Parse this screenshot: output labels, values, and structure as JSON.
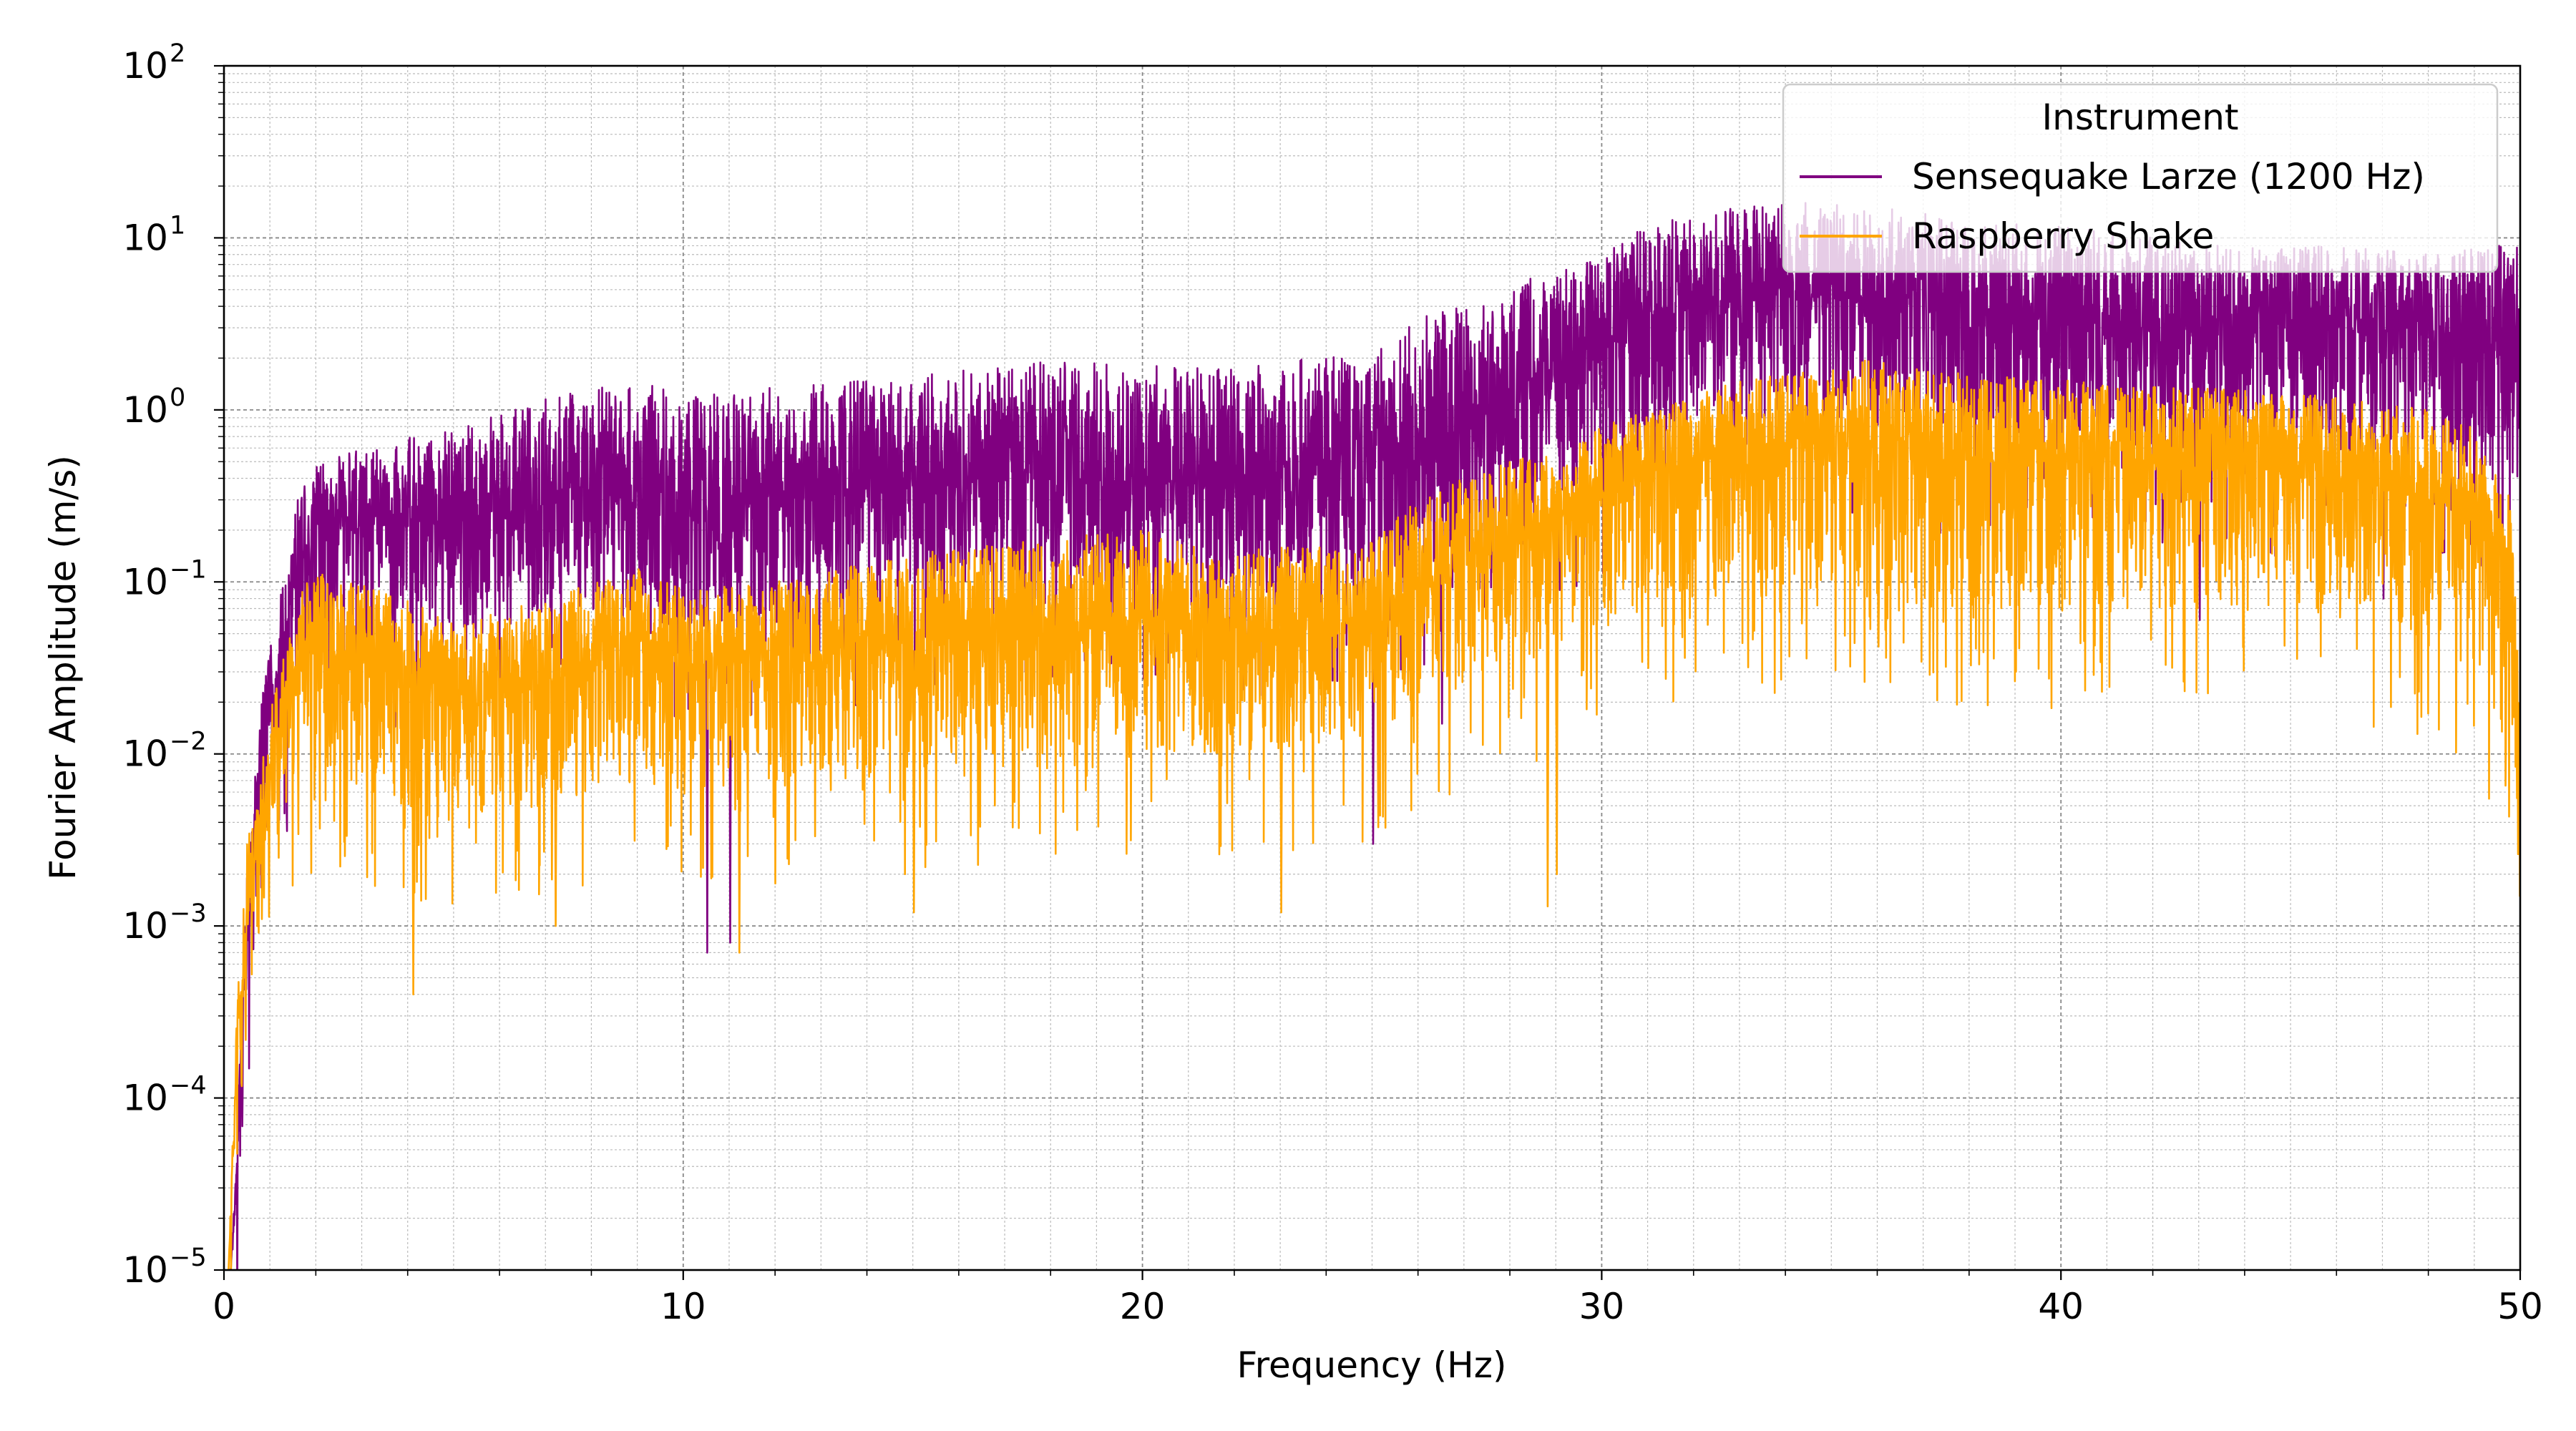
{
  "chart_data": {
    "type": "line",
    "title": "",
    "xlabel": "Frequency (Hz)",
    "ylabel": "Fourier Amplitude (m/s)",
    "xlim": [
      0,
      50
    ],
    "ylim": [
      1e-05,
      100
    ],
    "yscale": "log",
    "grid": "major and minor",
    "x_ticks": [
      "0",
      "10",
      "20",
      "30",
      "40",
      "50"
    ],
    "y_ticks": [
      {
        "base": "10",
        "exp": "−5"
      },
      {
        "base": "10",
        "exp": "−4"
      },
      {
        "base": "10",
        "exp": "−3"
      },
      {
        "base": "10",
        "exp": "−2"
      },
      {
        "base": "10",
        "exp": "−1"
      },
      {
        "base": "10",
        "exp": "0"
      },
      {
        "base": "10",
        "exp": "1"
      },
      {
        "base": "10",
        "exp": "2"
      }
    ],
    "legend": {
      "title": "Instrument",
      "placement": "top-right"
    },
    "series": [
      {
        "name": "Sensequake Larze (1200 Hz)",
        "color": "#800080",
        "envelope": {
          "x": [
            0.15,
            0.3,
            0.5,
            0.8,
            1.2,
            1.6,
            2,
            3,
            5,
            7,
            9,
            10,
            12,
            15,
            18,
            20,
            22,
            25,
            26,
            27,
            28,
            29,
            30,
            31,
            32,
            33,
            34,
            35,
            36,
            37,
            38,
            40,
            42,
            44,
            46,
            48,
            49,
            50
          ],
          "upper": [
            1e-05,
            0.0001,
            0.002,
            0.02,
            0.08,
            0.3,
            0.5,
            0.6,
            0.8,
            1.2,
            1.5,
            1.2,
            1.4,
            1.6,
            2.0,
            1.8,
            1.8,
            2.2,
            3.5,
            4,
            5,
            7,
            8,
            12,
            14,
            15,
            16,
            16,
            15,
            14,
            12,
            12,
            10,
            9,
            9,
            8,
            9,
            9
          ],
          "center": [
            1e-05,
            5e-05,
            0.001,
            0.008,
            0.03,
            0.12,
            0.2,
            0.2,
            0.22,
            0.25,
            0.3,
            0.25,
            0.3,
            0.35,
            0.4,
            0.38,
            0.35,
            0.45,
            0.6,
            0.8,
            1.0,
            1.5,
            2.2,
            3,
            4,
            4.5,
            4.5,
            4.5,
            4.2,
            4,
            3.5,
            3.3,
            3,
            3,
            3,
            2.7,
            2.5,
            2.5
          ],
          "lower": [
            1e-05,
            2e-05,
            0.0003,
            0.002,
            0.008,
            0.03,
            0.05,
            0.05,
            0.05,
            0.06,
            0.07,
            0.05,
            0.06,
            0.08,
            0.09,
            0.08,
            0.08,
            0.1,
            0.12,
            0.15,
            0.2,
            0.3,
            0.4,
            0.6,
            0.8,
            0.9,
            0.9,
            0.9,
            0.8,
            0.7,
            0.6,
            0.6,
            0.6,
            0.55,
            0.5,
            0.5,
            0.45,
            0.4
          ],
          "notable_dips": [
            [
              10.5,
              0.0007
            ],
            [
              11.0,
              0.0008
            ],
            [
              25.0,
              0.003
            ],
            [
              26.5,
              0.015
            ],
            [
              39.0,
              0.06
            ],
            [
              43.0,
              0.06
            ],
            [
              47.0,
              0.08
            ]
          ]
        }
      },
      {
        "name": "Raspberry Shake",
        "color": "#FFA500",
        "envelope": {
          "x": [
            0.1,
            0.3,
            0.5,
            0.8,
            1.2,
            1.6,
            2,
            3,
            5,
            7,
            9,
            10,
            12,
            15,
            18,
            20,
            22,
            25,
            26,
            27,
            28,
            29,
            30,
            31,
            32,
            33,
            34,
            35,
            36,
            37,
            38,
            40,
            42,
            44,
            46,
            48,
            49,
            49.8,
            50
          ],
          "upper": [
            1e-05,
            0.0005,
            0.003,
            0.01,
            0.03,
            0.08,
            0.12,
            0.1,
            0.06,
            0.08,
            0.12,
            0.09,
            0.1,
            0.15,
            0.18,
            0.2,
            0.15,
            0.18,
            0.3,
            0.4,
            0.5,
            0.6,
            0.8,
            1.0,
            1.2,
            1.5,
            1.6,
            1.8,
            2.0,
            1.8,
            1.6,
            1.5,
            1.4,
            1.3,
            1.2,
            1.0,
            0.8,
            0.3,
            0.04
          ],
          "center": [
            1e-05,
            0.0002,
            0.001,
            0.004,
            0.01,
            0.03,
            0.04,
            0.03,
            0.018,
            0.025,
            0.04,
            0.03,
            0.035,
            0.04,
            0.05,
            0.055,
            0.05,
            0.06,
            0.09,
            0.12,
            0.15,
            0.2,
            0.3,
            0.4,
            0.5,
            0.55,
            0.6,
            0.6,
            0.6,
            0.55,
            0.5,
            0.5,
            0.45,
            0.45,
            0.4,
            0.3,
            0.2,
            0.06,
            0.01
          ],
          "lower": [
            1e-05,
            5e-05,
            0.0003,
            0.001,
            0.003,
            0.006,
            0.008,
            0.006,
            0.004,
            0.005,
            0.007,
            0.006,
            0.007,
            0.008,
            0.01,
            0.01,
            0.01,
            0.012,
            0.018,
            0.025,
            0.03,
            0.04,
            0.06,
            0.07,
            0.08,
            0.09,
            0.09,
            0.09,
            0.08,
            0.08,
            0.07,
            0.07,
            0.07,
            0.07,
            0.06,
            0.05,
            0.03,
            0.01,
            0.002
          ],
          "notable_dips": [
            [
              4.1,
              0.0004
            ],
            [
              7.2,
              0.001
            ],
            [
              11.2,
              0.0007
            ],
            [
              15.0,
              0.0012
            ],
            [
              23.0,
              0.0012
            ],
            [
              28.8,
              0.0013
            ],
            [
              29.0,
              0.002
            ]
          ]
        }
      }
    ]
  }
}
